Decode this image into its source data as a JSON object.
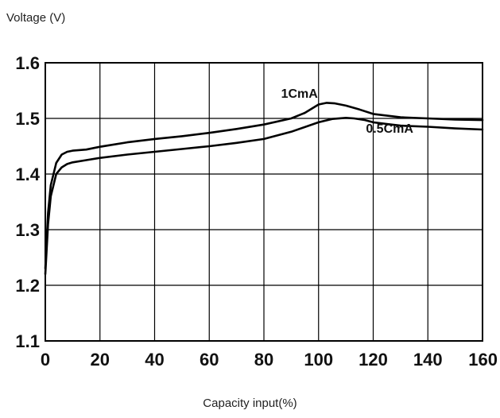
{
  "chart_data": {
    "type": "line",
    "title": "",
    "xlabel": "Capacity input(%)",
    "ylabel": "Voltage (V)",
    "xlim": [
      0,
      160
    ],
    "ylim": [
      1.1,
      1.6
    ],
    "xticks": [
      0,
      20,
      40,
      60,
      80,
      100,
      120,
      140,
      160
    ],
    "yticks": [
      1.1,
      1.2,
      1.3,
      1.4,
      1.5,
      1.6
    ],
    "xtick_labels": [
      "0",
      "20",
      "40",
      "60",
      "80",
      "100",
      "120",
      "140",
      "160"
    ],
    "ytick_labels": [
      "1.1",
      "1.2",
      "1.3",
      "1.4",
      "1.5",
      "1.6"
    ],
    "grid": true,
    "legend": "none",
    "series": [
      {
        "name": "1CmA",
        "color": "#000000",
        "x": [
          0,
          1,
          2,
          4,
          6,
          8,
          10,
          15,
          20,
          30,
          40,
          50,
          60,
          70,
          80,
          90,
          95,
          100,
          103,
          106,
          110,
          115,
          120,
          130,
          140,
          150,
          160
        ],
        "y": [
          1.23,
          1.33,
          1.38,
          1.42,
          1.435,
          1.44,
          1.442,
          1.444,
          1.449,
          1.457,
          1.463,
          1.468,
          1.474,
          1.481,
          1.489,
          1.5,
          1.51,
          1.525,
          1.528,
          1.527,
          1.523,
          1.516,
          1.508,
          1.502,
          1.5,
          1.498,
          1.497
        ]
      },
      {
        "name": "0.5CmA",
        "color": "#000000",
        "x": [
          0,
          1,
          2,
          4,
          6,
          8,
          10,
          15,
          20,
          30,
          40,
          50,
          60,
          70,
          80,
          90,
          100,
          105,
          110,
          113,
          117,
          120,
          125,
          130,
          140,
          150,
          160
        ],
        "y": [
          1.22,
          1.31,
          1.36,
          1.4,
          1.412,
          1.418,
          1.421,
          1.425,
          1.429,
          1.435,
          1.44,
          1.445,
          1.45,
          1.456,
          1.463,
          1.476,
          1.493,
          1.499,
          1.501,
          1.5,
          1.497,
          1.493,
          1.49,
          1.487,
          1.485,
          1.482,
          1.48
        ]
      }
    ],
    "annotations": [
      {
        "text": "1CmA",
        "x": 93,
        "y": 1.537
      },
      {
        "text": "0.5CmA",
        "x": 126,
        "y": 1.474
      }
    ]
  }
}
